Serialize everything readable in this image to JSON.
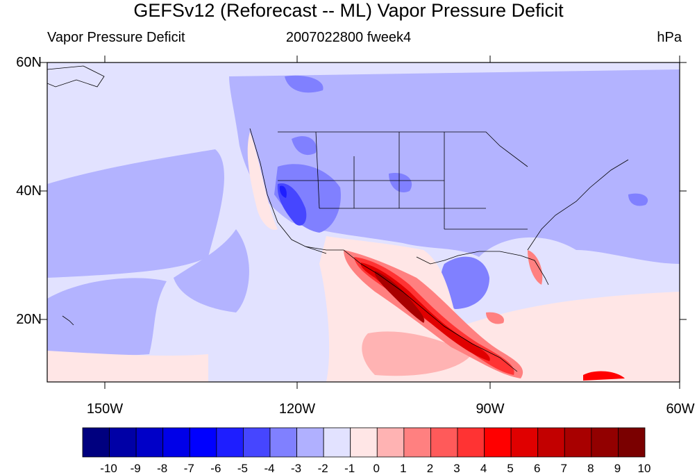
{
  "title": "GEFSv12 (Reforecast -- ML) Vapor Pressure Deficit",
  "subtitle_left": "Vapor Pressure Deficit",
  "subtitle_center": "2007022800 fweek4",
  "subtitle_right": "hPa",
  "lat_labels": [
    "60N",
    "40N",
    "20N"
  ],
  "lon_labels": [
    "150W",
    "120W",
    "90W",
    "60W"
  ],
  "colorbar": {
    "ticks": [
      "-10",
      "-9",
      "-8",
      "-7",
      "-6",
      "-5",
      "-4",
      "-3",
      "-2",
      "-1",
      "0",
      "1",
      "2",
      "3",
      "4",
      "5",
      "6",
      "7",
      "8",
      "9",
      "10"
    ],
    "colors": [
      "#00007f",
      "#0000a6",
      "#0000c8",
      "#0000e8",
      "#0000ff",
      "#1e1eff",
      "#4646ff",
      "#8080ff",
      "#b0b0ff",
      "#e2e2ff",
      "#ffe6e6",
      "#ffb3b3",
      "#ff8080",
      "#ff5a5a",
      "#ff3333",
      "#ff0000",
      "#e00000",
      "#c20000",
      "#a80000",
      "#920000",
      "#7a0000"
    ]
  },
  "colors": {
    "land_light": "#b3b3ff",
    "ocean_light": "#e2e2ff",
    "mid_blue": "#8080ff",
    "red": "#ff0000"
  }
}
